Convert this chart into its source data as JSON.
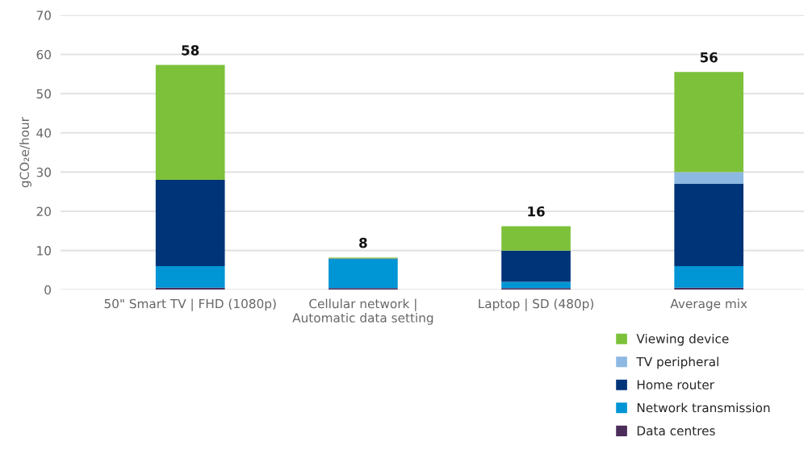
{
  "chart_data": {
    "type": "bar",
    "stacked": true,
    "ylabel": "gCO₂e/hour",
    "categories": [
      "50\" Smart TV | FHD (1080p)",
      "Cellular network |\nAutomatic data setting",
      "Laptop | SD (480p)",
      "Average mix"
    ],
    "series": [
      {
        "name": "Data centres",
        "color": "#4b2d5a",
        "values": [
          0.5,
          0.4,
          0.4,
          0.5
        ]
      },
      {
        "name": "Network transmission",
        "color": "#0095d5",
        "values": [
          5.5,
          7.4,
          1.6,
          5.5
        ]
      },
      {
        "name": "Home router",
        "color": "#003478",
        "values": [
          22,
          0.2,
          8,
          21
        ]
      },
      {
        "name": "TV peripheral",
        "color": "#8db8e2",
        "values": [
          0,
          0,
          0,
          3
        ]
      },
      {
        "name": "Viewing device",
        "color": "#7dc13a",
        "values": [
          29.3,
          0.2,
          6.2,
          25.5
        ]
      }
    ],
    "totals": [
      "58",
      "8",
      "16",
      "56"
    ],
    "ylim": [
      0,
      70
    ],
    "yticks": [
      0,
      10,
      20,
      30,
      40,
      50,
      60,
      70
    ],
    "grid": "y",
    "legend": "bottom right"
  }
}
